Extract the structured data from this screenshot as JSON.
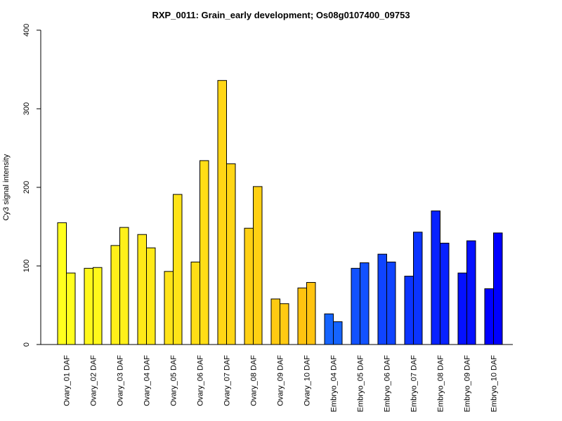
{
  "chart_data": {
    "type": "bar",
    "title": "RXP_0011: Grain_early development; Os08g0107400_09753",
    "xlabel": "",
    "ylabel": "Cy3 signal intensity",
    "ylim": [
      0,
      400
    ],
    "yticks": [
      0,
      100,
      200,
      300,
      400
    ],
    "bars_per_group": 2,
    "categories": [
      "Ovary_01 DAF",
      "Ovary_02 DAF",
      "Ovary_03 DAF",
      "Ovary_04 DAF",
      "Ovary_05 DAF",
      "Ovary_06 DAF",
      "Ovary_07 DAF",
      "Ovary_08 DAF",
      "Ovary_09 DAF",
      "Ovary_10 DAF",
      "Embryo_04 DAF",
      "Embryo_05 DAF",
      "Embryo_06 DAF",
      "Embryo_07 DAF",
      "Embryo_08 DAF",
      "Embryo_09 DAF",
      "Embryo_10 DAF"
    ],
    "values": [
      [
        155,
        91
      ],
      [
        97,
        98
      ],
      [
        126,
        149
      ],
      [
        140,
        123
      ],
      [
        93,
        191
      ],
      [
        105,
        234
      ],
      [
        336,
        230
      ],
      [
        148,
        201
      ],
      [
        58,
        52
      ],
      [
        72,
        79
      ],
      [
        39,
        29
      ],
      [
        97,
        104
      ],
      [
        115,
        105
      ],
      [
        87,
        143
      ],
      [
        170,
        129
      ],
      [
        91,
        132
      ],
      [
        71,
        142
      ]
    ],
    "group_colors": [
      "#FFFF1E",
      "#FFF81B",
      "#FFF01A",
      "#FFEA18",
      "#FFE318",
      "#FFDE16",
      "#FFD615",
      "#FFD013",
      "#FFCA12",
      "#FFC310",
      "#1564FF",
      "#1252FF",
      "#0F44FF",
      "#0B34FF",
      "#0822FF",
      "#0511FF",
      "#0000FF"
    ]
  }
}
